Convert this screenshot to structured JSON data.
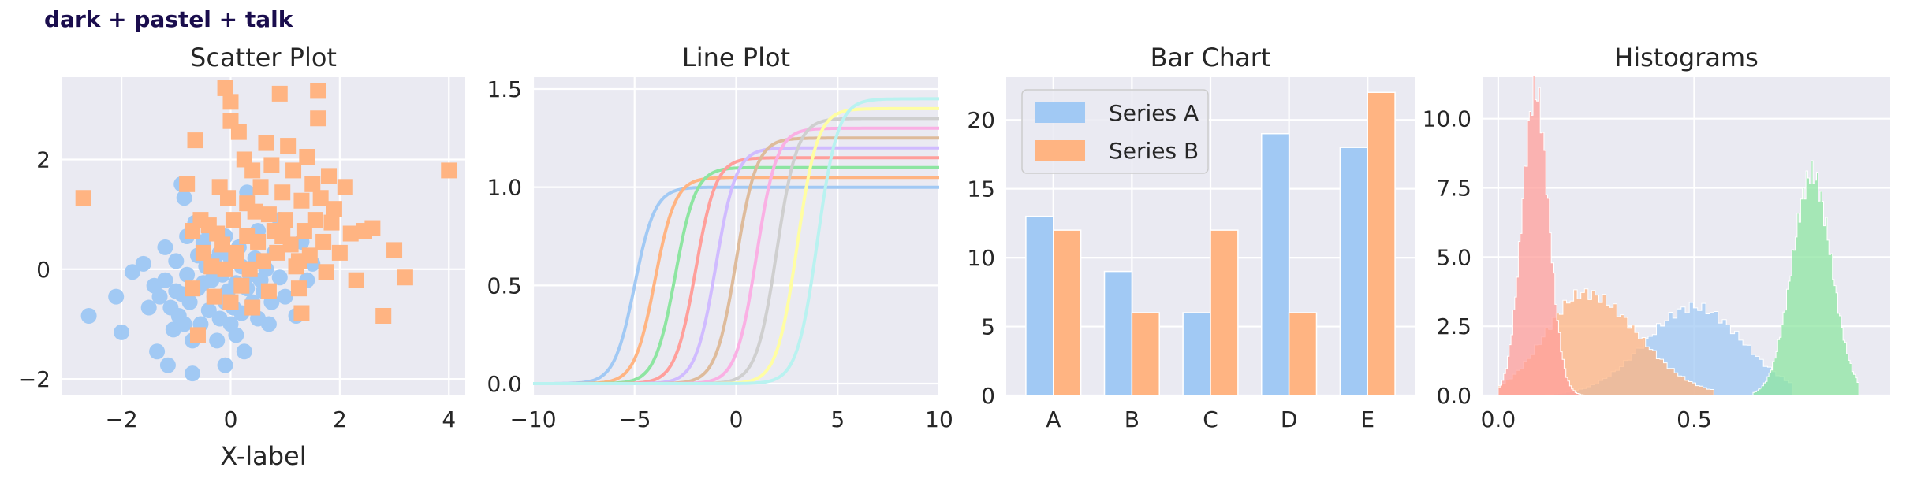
{
  "suptitle": "dark + pastel + talk",
  "colors": {
    "background": "#eaeaf2",
    "grid": "#ffffff",
    "text": "#262626",
    "suptitle": "#1a0d4d",
    "pastel": [
      "#a1c9f4",
      "#ffb482",
      "#8de5a1",
      "#ff9f9b",
      "#d0bbff",
      "#debb9b",
      "#fab0e4",
      "#cfcfcf",
      "#fffea3",
      "#b9f2f0"
    ]
  },
  "chart_data": [
    {
      "type": "scatter",
      "title": "Scatter Plot",
      "xlabel": "X-label",
      "ylabel": "",
      "xlim": [
        -3.1,
        4.3
      ],
      "ylim": [
        -2.3,
        3.5
      ],
      "xticks": [
        -2,
        0,
        2,
        4
      ],
      "xtick_labels": [
        "−2",
        "0",
        "2",
        "4"
      ],
      "yticks": [
        -2,
        0,
        2
      ],
      "ytick_labels": [
        "−2",
        "0",
        "2"
      ],
      "series": [
        {
          "marker": "circle",
          "points": [
            [
              -2.6,
              -0.85
            ],
            [
              -2.0,
              -1.15
            ],
            [
              -2.1,
              -0.5
            ],
            [
              -1.8,
              -0.05
            ],
            [
              -1.6,
              0.1
            ],
            [
              -1.5,
              -0.7
            ],
            [
              -1.4,
              -0.3
            ],
            [
              -1.3,
              -0.5
            ],
            [
              -1.35,
              -1.5
            ],
            [
              -1.2,
              0.4
            ],
            [
              -1.2,
              -0.2
            ],
            [
              -1.15,
              -1.75
            ],
            [
              -1.1,
              -0.7
            ],
            [
              -1.05,
              -1.1
            ],
            [
              -1.0,
              0.15
            ],
            [
              -1.0,
              -0.4
            ],
            [
              -0.95,
              -0.85
            ],
            [
              -0.9,
              -0.45
            ],
            [
              -0.85,
              -1.0
            ],
            [
              -0.85,
              1.3
            ],
            [
              -0.8,
              0.6
            ],
            [
              -0.8,
              -0.1
            ],
            [
              -0.75,
              -0.6
            ],
            [
              -0.7,
              -1.3
            ],
            [
              -0.7,
              -1.9
            ],
            [
              -0.65,
              0.85
            ],
            [
              -0.6,
              0.25
            ],
            [
              -0.6,
              -0.35
            ],
            [
              -0.55,
              -1.0
            ],
            [
              -0.5,
              0.5
            ],
            [
              -0.5,
              -0.25
            ],
            [
              -0.45,
              0.05
            ],
            [
              -0.4,
              -0.75
            ],
            [
              -0.4,
              0.7
            ],
            [
              -0.35,
              -0.2
            ],
            [
              -0.3,
              -0.5
            ],
            [
              -0.3,
              0.15
            ],
            [
              -0.25,
              -1.3
            ],
            [
              -0.2,
              0.3
            ],
            [
              -0.2,
              -0.9
            ],
            [
              -0.15,
              -0.1
            ],
            [
              -0.1,
              -0.6
            ],
            [
              -0.1,
              0.6
            ],
            [
              -0.05,
              -0.4
            ],
            [
              0.0,
              -1.0
            ],
            [
              0.0,
              0.2
            ],
            [
              0.05,
              -0.7
            ],
            [
              0.1,
              -1.2
            ],
            [
              0.1,
              -0.25
            ],
            [
              0.15,
              0.4
            ],
            [
              0.2,
              -0.8
            ],
            [
              0.2,
              0.05
            ],
            [
              0.25,
              -1.5
            ],
            [
              0.3,
              -0.35
            ],
            [
              0.3,
              1.4
            ],
            [
              0.35,
              -0.1
            ],
            [
              0.4,
              -0.6
            ],
            [
              0.45,
              0.2
            ],
            [
              0.5,
              -0.9
            ],
            [
              0.5,
              0.7
            ],
            [
              0.55,
              -0.2
            ],
            [
              0.6,
              -0.4
            ],
            [
              0.65,
              0.0
            ],
            [
              0.7,
              -1.0
            ],
            [
              0.75,
              -0.6
            ],
            [
              0.8,
              0.3
            ],
            [
              0.9,
              -0.15
            ],
            [
              1.0,
              -0.5
            ],
            [
              1.2,
              -0.85
            ],
            [
              1.3,
              0.5
            ],
            [
              1.4,
              -0.2
            ],
            [
              1.5,
              0.1
            ],
            [
              -0.1,
              -1.75
            ],
            [
              0.9,
              0.9
            ],
            [
              -0.9,
              1.55
            ]
          ]
        },
        {
          "marker": "square",
          "points": [
            [
              -2.7,
              1.3
            ],
            [
              4.0,
              1.8
            ],
            [
              3.2,
              -0.15
            ],
            [
              2.8,
              -0.85
            ],
            [
              3.0,
              0.35
            ],
            [
              -0.8,
              1.55
            ],
            [
              -0.65,
              2.35
            ],
            [
              -0.7,
              0.7
            ],
            [
              -0.7,
              -0.35
            ],
            [
              -0.6,
              -1.2
            ],
            [
              -0.5,
              0.3
            ],
            [
              -0.4,
              0.8
            ],
            [
              -0.35,
              0.05
            ],
            [
              -0.3,
              -0.5
            ],
            [
              -0.2,
              1.5
            ],
            [
              -0.15,
              0.45
            ],
            [
              -0.1,
              0.0
            ],
            [
              -0.05,
              1.3
            ],
            [
              0.0,
              2.7
            ],
            [
              0.0,
              3.05
            ],
            [
              -0.1,
              3.3
            ],
            [
              0.0,
              -0.6
            ],
            [
              0.05,
              0.9
            ],
            [
              0.1,
              0.3
            ],
            [
              0.15,
              2.5
            ],
            [
              0.2,
              -0.3
            ],
            [
              0.25,
              2.0
            ],
            [
              0.3,
              1.2
            ],
            [
              0.3,
              0.6
            ],
            [
              0.35,
              0.0
            ],
            [
              0.4,
              1.8
            ],
            [
              0.4,
              -0.7
            ],
            [
              0.45,
              1.05
            ],
            [
              0.5,
              0.5
            ],
            [
              0.55,
              1.5
            ],
            [
              0.6,
              0.15
            ],
            [
              0.65,
              2.3
            ],
            [
              0.7,
              1.0
            ],
            [
              0.7,
              -0.4
            ],
            [
              0.75,
              1.9
            ],
            [
              0.8,
              0.7
            ],
            [
              0.85,
              0.3
            ],
            [
              0.9,
              3.2
            ],
            [
              0.95,
              1.4
            ],
            [
              1.0,
              0.9
            ],
            [
              1.05,
              2.25
            ],
            [
              1.1,
              0.45
            ],
            [
              1.15,
              1.8
            ],
            [
              1.2,
              0.05
            ],
            [
              1.25,
              -0.35
            ],
            [
              1.3,
              1.25
            ],
            [
              1.35,
              0.7
            ],
            [
              1.4,
              2.05
            ],
            [
              1.45,
              0.25
            ],
            [
              1.5,
              1.55
            ],
            [
              1.55,
              0.9
            ],
            [
              1.6,
              3.25
            ],
            [
              1.6,
              2.75
            ],
            [
              1.65,
              1.3
            ],
            [
              1.7,
              0.5
            ],
            [
              1.75,
              -0.05
            ],
            [
              1.8,
              1.7
            ],
            [
              1.85,
              0.85
            ],
            [
              1.9,
              1.1
            ],
            [
              2.0,
              0.3
            ],
            [
              2.1,
              1.5
            ],
            [
              2.2,
              0.65
            ],
            [
              2.3,
              -0.2
            ],
            [
              2.45,
              0.7
            ],
            [
              2.6,
              0.75
            ],
            [
              1.3,
              -0.8
            ],
            [
              0.1,
              0.15
            ],
            [
              -0.55,
              0.9
            ],
            [
              0.95,
              0.6
            ],
            [
              1.25,
              0.15
            ],
            [
              -0.25,
              0.65
            ]
          ]
        }
      ]
    },
    {
      "type": "line",
      "title": "Line Plot",
      "xlim": [
        -10,
        10
      ],
      "ylim": [
        -0.06,
        1.56
      ],
      "xticks": [
        -10,
        -5,
        0,
        5,
        10
      ],
      "xtick_labels": [
        "−10",
        "−5",
        "0",
        "5",
        "10"
      ],
      "yticks": [
        0.0,
        0.5,
        1.0,
        1.5
      ],
      "ytick_labels": [
        "0.0",
        "0.5",
        "1.0",
        "1.5"
      ],
      "x": [
        -10,
        10
      ],
      "series": [
        {
          "shift": -5,
          "scale": 1.0
        },
        {
          "shift": -4,
          "scale": 1.05
        },
        {
          "shift": -3,
          "scale": 1.1
        },
        {
          "shift": -2,
          "scale": 1.15
        },
        {
          "shift": -1,
          "scale": 1.2
        },
        {
          "shift": 0,
          "scale": 1.25
        },
        {
          "shift": 1,
          "scale": 1.3
        },
        {
          "shift": 2,
          "scale": 1.35
        },
        {
          "shift": 3,
          "scale": 1.4
        },
        {
          "shift": 4,
          "scale": 1.45
        }
      ]
    },
    {
      "type": "bar",
      "title": "Bar Chart",
      "categories": [
        "A",
        "B",
        "C",
        "D",
        "E"
      ],
      "ylim": [
        0,
        23.1
      ],
      "yticks": [
        0,
        5,
        10,
        15,
        20
      ],
      "ytick_labels": [
        "0",
        "5",
        "10",
        "15",
        "20"
      ],
      "legend": "top-left",
      "series": [
        {
          "name": "Series A",
          "values": [
            13,
            9,
            6,
            19,
            18
          ]
        },
        {
          "name": "Series B",
          "values": [
            12,
            6,
            12,
            6,
            22
          ]
        }
      ]
    },
    {
      "type": "histogram",
      "title": "Histograms",
      "xlim": [
        -0.04,
        1.0
      ],
      "ylim": [
        0,
        11.5
      ],
      "xticks": [
        0.0,
        0.5
      ],
      "xtick_labels": [
        "0.0",
        "0.5"
      ],
      "yticks": [
        0.0,
        2.5,
        5.0,
        7.5,
        10.0
      ],
      "ytick_labels": [
        "0.0",
        "2.5",
        "5.0",
        "7.5",
        "10.0"
      ],
      "series": [
        {
          "color_index": 0,
          "mean": 0.5,
          "sd": 0.125,
          "peak": 3.2,
          "min": 0.12,
          "max": 0.75
        },
        {
          "color_index": 1,
          "mean": 0.22,
          "sd": 0.1,
          "peak": 3.7,
          "min": 0.0,
          "max": 0.55,
          "skew_right": true
        },
        {
          "color_index": 2,
          "mean": 0.8,
          "sd": 0.05,
          "peak": 8.0,
          "min": 0.65,
          "max": 0.92
        },
        {
          "color_index": 3,
          "mean": 0.095,
          "sd": 0.034,
          "peak": 11.0,
          "min": 0.0,
          "max": 0.28
        }
      ]
    }
  ]
}
